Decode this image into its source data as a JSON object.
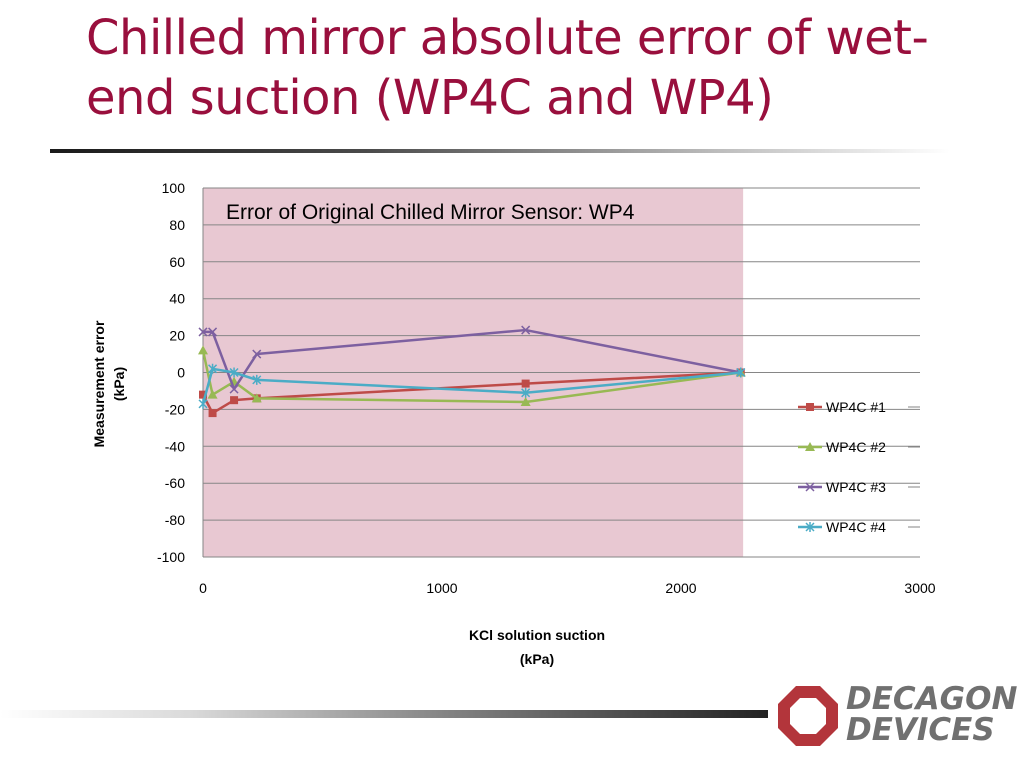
{
  "slide": {
    "title": "Chilled mirror absolute error of wet-end suction (WP4C and WP4)"
  },
  "logo": {
    "line1": "DECAGON",
    "line2": "DEVICES",
    "brand_color": "#b3353b"
  },
  "chart_data": {
    "type": "line",
    "title": "",
    "annotation": "Error of Original Chilled Mirror Sensor: WP4",
    "highlight_region": {
      "x_from": 0,
      "x_to": 2260,
      "color": "#e8c8d2"
    },
    "xlabel": "KCl solution suction (kPa)",
    "ylabel": "Measurement error (kPa)",
    "xlim": [
      0,
      3000
    ],
    "ylim": [
      -100,
      100
    ],
    "x_ticks": [
      0,
      1000,
      2000,
      3000
    ],
    "y_ticks": [
      100,
      80,
      60,
      40,
      20,
      0,
      -20,
      -40,
      -60,
      -80,
      -100
    ],
    "grid": "horizontal",
    "legend_position": "right",
    "series": [
      {
        "name": "WP4C #1",
        "color": "#be4b48",
        "marker": "square",
        "points": [
          [
            0,
            -12
          ],
          [
            40,
            -22
          ],
          [
            130,
            -15
          ],
          [
            225,
            -14
          ],
          [
            1350,
            -6
          ],
          [
            2250,
            0
          ]
        ]
      },
      {
        "name": "WP4C #2",
        "color": "#98b954",
        "marker": "triangle",
        "points": [
          [
            0,
            12
          ],
          [
            40,
            -12
          ],
          [
            130,
            -5
          ],
          [
            225,
            -14
          ],
          [
            1350,
            -16
          ],
          [
            2250,
            0
          ]
        ]
      },
      {
        "name": "WP4C #3",
        "color": "#7d60a0",
        "marker": "x",
        "points": [
          [
            0,
            22
          ],
          [
            40,
            22
          ],
          [
            130,
            -9
          ],
          [
            225,
            10
          ],
          [
            1350,
            23
          ],
          [
            2250,
            0
          ]
        ]
      },
      {
        "name": "WP4C #4",
        "color": "#4bacc6",
        "marker": "star",
        "points": [
          [
            0,
            -17
          ],
          [
            40,
            2
          ],
          [
            130,
            0
          ],
          [
            225,
            -4
          ],
          [
            1350,
            -11
          ],
          [
            2250,
            0
          ]
        ]
      }
    ]
  }
}
